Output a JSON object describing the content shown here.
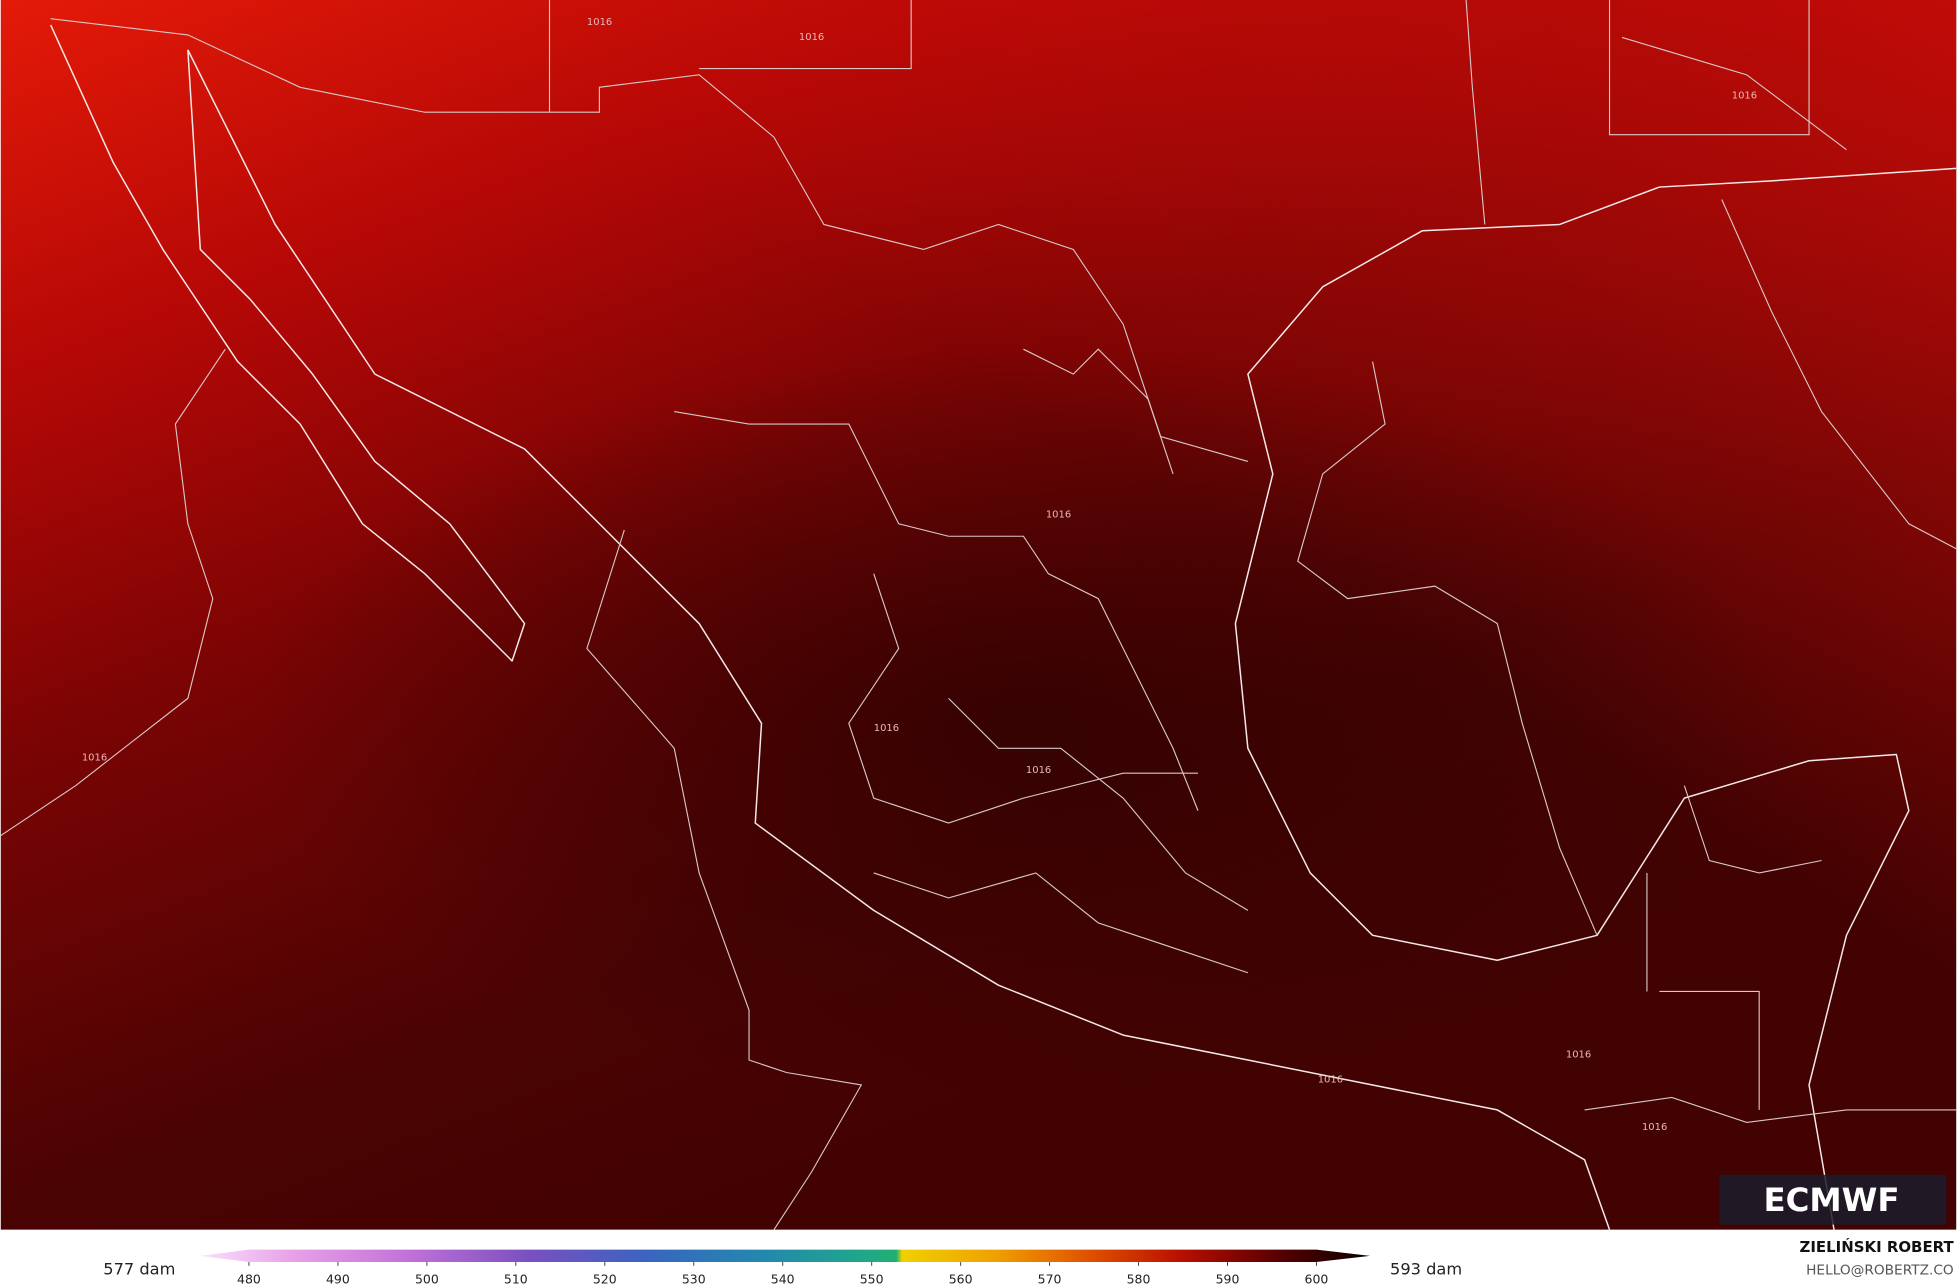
{
  "map": {
    "isobar_label": "1016",
    "logo": "ECMWF",
    "legend": {
      "min_label": "577 dam",
      "max_label": "593 dam",
      "ticks": [
        480,
        490,
        500,
        510,
        520,
        530,
        540,
        550,
        560,
        570,
        580,
        590,
        600
      ]
    },
    "credit": {
      "name": "ZIELIŃSKI ROBERT",
      "contact": "HELLO@ROBERTZ.CO"
    }
  }
}
